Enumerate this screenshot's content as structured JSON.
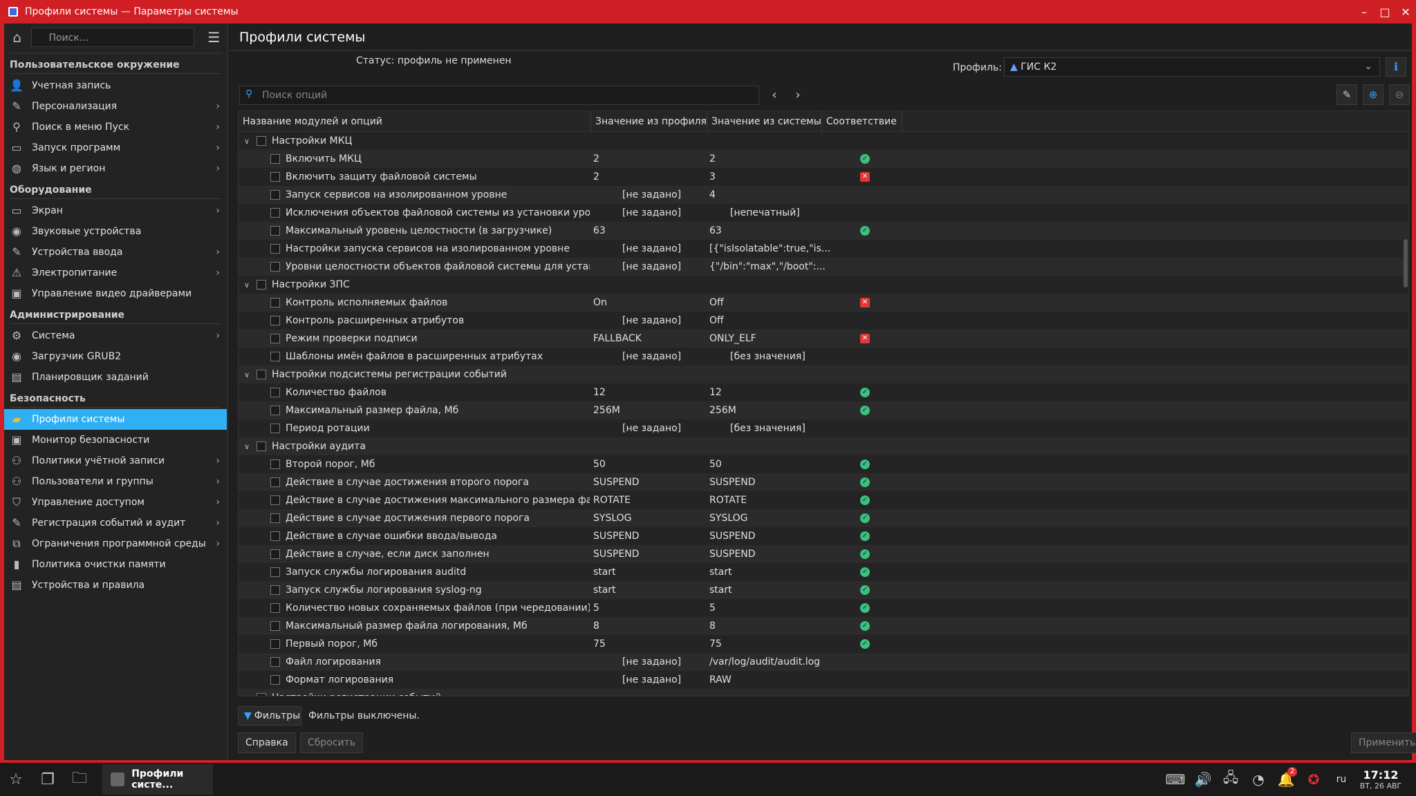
{
  "window": {
    "title": "Профили системы — Параметры системы"
  },
  "sidebar": {
    "search_placeholder": "Поиск...",
    "sections": [
      {
        "header": "Пользовательское окружение",
        "items": [
          {
            "label": "Учетная запись",
            "icon": "user-icon",
            "chevron": false
          },
          {
            "label": "Персонализация",
            "icon": "brush-icon",
            "chevron": true
          },
          {
            "label": "Поиск в меню Пуск",
            "icon": "search-icon",
            "chevron": true
          },
          {
            "label": "Запуск программ",
            "icon": "window-icon",
            "chevron": true
          },
          {
            "label": "Язык и регион",
            "icon": "globe-icon",
            "chevron": true
          }
        ]
      },
      {
        "header": "Оборудование",
        "items": [
          {
            "label": "Экран",
            "icon": "monitor-icon",
            "chevron": true
          },
          {
            "label": "Звуковые устройства",
            "icon": "speaker-icon",
            "chevron": false
          },
          {
            "label": "Устройства ввода",
            "icon": "keyboard-icon",
            "chevron": true
          },
          {
            "label": "Электропитание",
            "icon": "power-icon",
            "chevron": true
          },
          {
            "label": "Управление видео драйверами",
            "icon": "gpu-icon",
            "chevron": false
          }
        ]
      },
      {
        "header": "Администрирование",
        "items": [
          {
            "label": "Система",
            "icon": "gear-icon",
            "chevron": true
          },
          {
            "label": "Загрузчик GRUB2",
            "icon": "grub-icon",
            "chevron": false
          },
          {
            "label": "Планировщик заданий",
            "icon": "scheduler-icon",
            "chevron": false
          }
        ]
      },
      {
        "header": "Безопасность",
        "items": [
          {
            "label": "Профили системы",
            "icon": "profile-icon",
            "chevron": false,
            "active": true
          },
          {
            "label": "Монитор безопасности",
            "icon": "security-monitor-icon",
            "chevron": false
          },
          {
            "label": "Политики учётной записи",
            "icon": "account-policy-icon",
            "chevron": true
          },
          {
            "label": "Пользователи и группы",
            "icon": "users-icon",
            "chevron": true
          },
          {
            "label": "Управление доступом",
            "icon": "shield-icon",
            "chevron": true
          },
          {
            "label": "Регистрация событий и аудит",
            "icon": "audit-icon",
            "chevron": true
          },
          {
            "label": "Ограничения программной среды",
            "icon": "restriction-icon",
            "chevron": true
          },
          {
            "label": "Политика очистки памяти",
            "icon": "memory-icon",
            "chevron": false
          },
          {
            "label": "Устройства и правила",
            "icon": "device-rules-icon",
            "chevron": false
          }
        ]
      }
    ]
  },
  "main": {
    "title": "Профили системы",
    "status": "Статус: профиль не применен",
    "profile_label": "Профиль:",
    "profile_value": "ГИС К2",
    "search_placeholder": "Поиск опций",
    "columns": [
      "Название модулей и опций",
      "Значение из профиля",
      "Значение из системы",
      "Соответствие"
    ],
    "rows": [
      {
        "level": 0,
        "name": "Настройки МКЦ",
        "pv": "",
        "sv": "",
        "m": ""
      },
      {
        "level": 1,
        "name": "Включить МКЦ",
        "pv": "2",
        "sv": "2",
        "m": "ok"
      },
      {
        "level": 1,
        "name": "Включить защиту файловой системы",
        "pv": "2",
        "sv": "3",
        "m": "bad"
      },
      {
        "level": 1,
        "name": "Запуск сервисов на изолированном уровне",
        "pv": "[не задано]",
        "sv": "4",
        "m": "",
        "pv_ind": true
      },
      {
        "level": 1,
        "name": "Исключения объектов файловой системы из установки уровне...",
        "pv": "[не задано]",
        "sv": "[непечатный]",
        "m": "",
        "pv_ind": true,
        "sv_ind": true
      },
      {
        "level": 1,
        "name": "Максимальный уровень целостности (в загрузчике)",
        "pv": "63",
        "sv": "63",
        "m": "ok"
      },
      {
        "level": 1,
        "name": "Настройки запуска сервисов на изолированном уровне",
        "pv": "[не задано]",
        "sv": "[{\"isIsolatable\":true,\"is...",
        "m": "",
        "pv_ind": true
      },
      {
        "level": 1,
        "name": "Уровни целостности объектов файловой системы для установ...",
        "pv": "[не задано]",
        "sv": "{\"/bin\":\"max\",\"/boot\":...",
        "m": "",
        "pv_ind": true
      },
      {
        "level": 0,
        "name": "Настройки ЗПС",
        "pv": "",
        "sv": "",
        "m": ""
      },
      {
        "level": 1,
        "name": "Контроль исполняемых файлов",
        "pv": "On",
        "sv": "Off",
        "m": "bad"
      },
      {
        "level": 1,
        "name": "Контроль расширенных атрибутов",
        "pv": "[не задано]",
        "sv": "Off",
        "m": "",
        "pv_ind": true
      },
      {
        "level": 1,
        "name": "Режим проверки подписи",
        "pv": "FALLBACK",
        "sv": "ONLY_ELF",
        "m": "bad"
      },
      {
        "level": 1,
        "name": "Шаблоны имён файлов в расширенных атрибутах",
        "pv": "[не задано]",
        "sv": "[без значения]",
        "m": "",
        "pv_ind": true,
        "sv_ind": true
      },
      {
        "level": 0,
        "name": "Настройки подсистемы регистрации событий",
        "pv": "",
        "sv": "",
        "m": ""
      },
      {
        "level": 1,
        "name": "Количество файлов",
        "pv": "12",
        "sv": "12",
        "m": "ok"
      },
      {
        "level": 1,
        "name": "Максимальный размер файла, Мб",
        "pv": "256M",
        "sv": "256M",
        "m": "ok"
      },
      {
        "level": 1,
        "name": "Период ротации",
        "pv": "[не задано]",
        "sv": "[без значения]",
        "m": "",
        "pv_ind": true,
        "sv_ind": true
      },
      {
        "level": 0,
        "name": "Настройки аудита",
        "pv": "",
        "sv": "",
        "m": ""
      },
      {
        "level": 1,
        "name": "Второй порог, Мб",
        "pv": "50",
        "sv": "50",
        "m": "ok"
      },
      {
        "level": 1,
        "name": "Действие в случае достижения второго порога",
        "pv": "SUSPEND",
        "sv": "SUSPEND",
        "m": "ok"
      },
      {
        "level": 1,
        "name": "Действие в случае достижения максимального размера файл...",
        "pv": "ROTATE",
        "sv": "ROTATE",
        "m": "ok"
      },
      {
        "level": 1,
        "name": "Действие в случае достижения первого порога",
        "pv": "SYSLOG",
        "sv": "SYSLOG",
        "m": "ok"
      },
      {
        "level": 1,
        "name": "Действие в случае ошибки ввода/вывода",
        "pv": "SUSPEND",
        "sv": "SUSPEND",
        "m": "ok"
      },
      {
        "level": 1,
        "name": "Действие в случае, если диск заполнен",
        "pv": "SUSPEND",
        "sv": "SUSPEND",
        "m": "ok"
      },
      {
        "level": 1,
        "name": "Запуск службы логирования auditd",
        "pv": "start",
        "sv": "start",
        "m": "ok"
      },
      {
        "level": 1,
        "name": "Запуск службы логирования syslog-ng",
        "pv": "start",
        "sv": "start",
        "m": "ok"
      },
      {
        "level": 1,
        "name": "Количество новых сохраняемых файлов (при чередовании)",
        "pv": "5",
        "sv": "5",
        "m": "ok"
      },
      {
        "level": 1,
        "name": "Максимальный размер файла логирования, Мб",
        "pv": "8",
        "sv": "8",
        "m": "ok"
      },
      {
        "level": 1,
        "name": "Первый порог, Мб",
        "pv": "75",
        "sv": "75",
        "m": "ok"
      },
      {
        "level": 1,
        "name": "Файл логирования",
        "pv": "[не задано]",
        "sv": "/var/log/audit/audit.log",
        "m": "",
        "pv_ind": true
      },
      {
        "level": 1,
        "name": "Формат логирования",
        "pv": "[не задано]",
        "sv": "RAW",
        "m": "",
        "pv_ind": true
      },
      {
        "level": 0,
        "name": "Настройки регистрации событий",
        "pv": "",
        "sv": "",
        "m": ""
      }
    ],
    "filter_button": "Фильтры",
    "filter_status": "Фильтры выключены.",
    "help_button": "Справка",
    "reset_button": "Сбросить",
    "apply_button": "Применить"
  },
  "taskbar": {
    "task_label": "Профили систе...",
    "lang": "ru",
    "time": "17:12",
    "date": "ВТ, 26 АВГ",
    "notif_count": "2"
  }
}
